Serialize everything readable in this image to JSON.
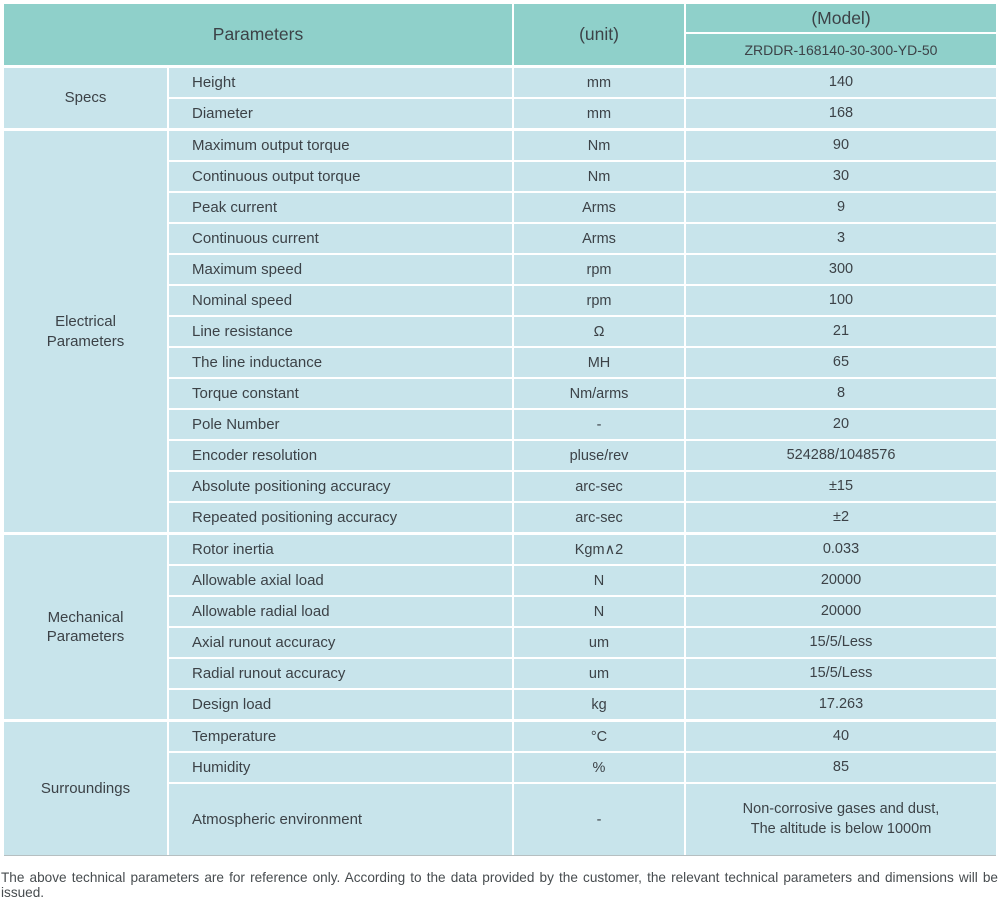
{
  "colors": {
    "header_bg": "#8FD0CA",
    "row_bg": "#C8E4EB",
    "text": "#3C4247"
  },
  "table": {
    "header": {
      "parameters_label": "Parameters",
      "unit_label": "(unit)",
      "model_label": "(Model)",
      "model_value": "ZRDDR-168140-30-300-YD-50"
    },
    "sections": [
      {
        "label": "Specs",
        "rows": [
          {
            "name": "Height",
            "unit": "mm",
            "value": "140"
          },
          {
            "name": "Diameter",
            "unit": "mm",
            "value": "168"
          }
        ]
      },
      {
        "label": "Electrical Parameters",
        "rows": [
          {
            "name": "Maximum output torque",
            "unit": "Nm",
            "value": "90"
          },
          {
            "name": "Continuous output torque",
            "unit": "Nm",
            "value": "30"
          },
          {
            "name": "Peak current",
            "unit": "Arms",
            "value": "9"
          },
          {
            "name": "Continuous current",
            "unit": "Arms",
            "value": "3"
          },
          {
            "name": "Maximum speed",
            "unit": "rpm",
            "value": "300"
          },
          {
            "name": "Nominal speed",
            "unit": "rpm",
            "value": "100"
          },
          {
            "name": "Line resistance",
            "unit": "Ω",
            "value": "21"
          },
          {
            "name": "The line inductance",
            "unit": "MH",
            "value": "65"
          },
          {
            "name": "Torque constant",
            "unit": "Nm/arms",
            "value": "8"
          },
          {
            "name": "Pole Number",
            "unit": "-",
            "value": "20"
          },
          {
            "name": "Encoder resolution",
            "unit": "pluse/rev",
            "value": "524288/1048576"
          },
          {
            "name": "Absolute positioning accuracy",
            "unit": "arc-sec",
            "value": "±15"
          },
          {
            "name": "Repeated positioning accuracy",
            "unit": "arc-sec",
            "value": "±2"
          }
        ]
      },
      {
        "label": "Mechanical Parameters",
        "rows": [
          {
            "name": "Rotor inertia",
            "unit": "Kgm∧2",
            "value": "0.033"
          },
          {
            "name": "Allowable axial load",
            "unit": "N",
            "value": "20000"
          },
          {
            "name": "Allowable radial load",
            "unit": "N",
            "value": "20000"
          },
          {
            "name": "Axial runout accuracy",
            "unit": "um",
            "value": "15/5/Less"
          },
          {
            "name": "Radial runout accuracy",
            "unit": "um",
            "value": "15/5/Less"
          },
          {
            "name": "Design load",
            "unit": "kg",
            "value": "17.263"
          }
        ]
      },
      {
        "label": "Surroundings",
        "rows": [
          {
            "name": "Temperature",
            "unit": "°C",
            "value": "40"
          },
          {
            "name": "Humidity",
            "unit": "%",
            "value": "85"
          },
          {
            "name": "Atmospheric environment",
            "unit": "-",
            "value": "Non-corrosive gases and dust,\nThe altitude is below 1000m"
          }
        ]
      }
    ]
  },
  "footer": {
    "note": "The above technical parameters are for reference only. According to the data provided by the customer, the relevant technical parameters and dimensions will be issued."
  }
}
